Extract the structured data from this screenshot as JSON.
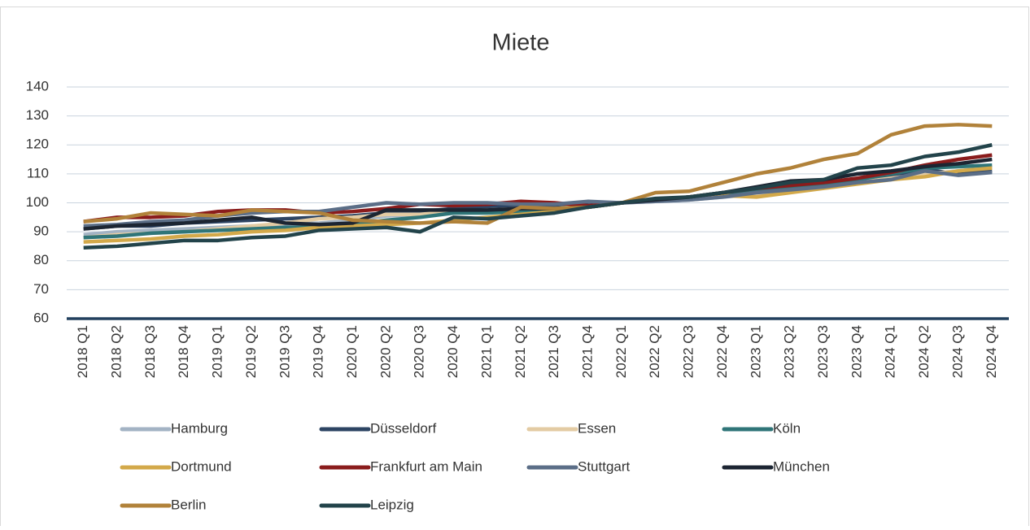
{
  "chart_data": {
    "type": "line",
    "title": "Miete",
    "categories": [
      "2018 Q1",
      "2018 Q2",
      "2018 Q3",
      "2018 Q4",
      "2019 Q1",
      "2019 Q2",
      "2019 Q3",
      "2019 Q4",
      "2020 Q1",
      "2020 Q2",
      "2020 Q3",
      "2020 Q4",
      "2021 Q1",
      "2021 Q2",
      "2021 Q3",
      "2021 Q4",
      "2022 Q1",
      "2022 Q2",
      "2022 Q3",
      "2022 Q4",
      "2023 Q1",
      "2023 Q2",
      "2023 Q3",
      "2023 Q4",
      "2024 Q1",
      "2024 Q2",
      "2024 Q3",
      "2024 Q4"
    ],
    "series": [
      {
        "name": "Hamburg",
        "color": "#a3b3c4",
        "values": [
          89,
          90,
          90.5,
          91,
          91.5,
          92,
          92.5,
          93,
          94,
          95.5,
          96,
          96.5,
          97,
          97.5,
          98,
          99,
          100,
          100.5,
          101,
          102,
          103,
          104,
          105.5,
          107,
          108.5,
          110,
          111,
          112
        ]
      },
      {
        "name": "Düsseldorf",
        "color": "#2d4463",
        "values": [
          91,
          92,
          92,
          93,
          93.5,
          94,
          94.5,
          95,
          95.5,
          96.5,
          97,
          98,
          98.5,
          99,
          99,
          99.5,
          100,
          101,
          102,
          103,
          104.5,
          105.5,
          106.5,
          108,
          109.5,
          111.5,
          110,
          111
        ]
      },
      {
        "name": "Essen",
        "color": "#e3cba3",
        "values": [
          88,
          89,
          89.5,
          90,
          91,
          92,
          93,
          94.5,
          95,
          96,
          96,
          97,
          97.5,
          98,
          98,
          99,
          100,
          101,
          101.5,
          102.5,
          103,
          104,
          105.5,
          107,
          108.5,
          110,
          111,
          112.5
        ]
      },
      {
        "name": "Köln",
        "color": "#2f7578",
        "values": [
          88,
          88.5,
          89.5,
          90,
          90.5,
          91,
          91.5,
          91.5,
          92.5,
          94,
          95,
          96.5,
          96.5,
          97,
          97.5,
          98.5,
          100,
          101,
          101.5,
          102.5,
          104,
          105,
          106.5,
          108,
          110,
          112,
          112.5,
          113
        ]
      },
      {
        "name": "Dortmund",
        "color": "#d3a94a",
        "values": [
          86.5,
          87,
          87.5,
          88.5,
          89,
          90,
          90.5,
          91.5,
          92,
          92.5,
          93,
          94,
          95,
          96,
          97,
          98.5,
          100,
          101,
          101.5,
          102.5,
          102,
          103.5,
          105,
          106.5,
          108,
          109,
          111,
          112
        ]
      },
      {
        "name": "Frankfurt am Main",
        "color": "#8a1c1c",
        "values": [
          93.5,
          95,
          95,
          95.5,
          97,
          97.5,
          97.5,
          96.5,
          97,
          98,
          99.5,
          99,
          99.5,
          100.5,
          100,
          99,
          100,
          101,
          102,
          103.5,
          105,
          106,
          107,
          108.5,
          110.5,
          113,
          115,
          116.5
        ]
      },
      {
        "name": "Stuttgart",
        "color": "#5b6e87",
        "values": [
          92,
          92.5,
          93.5,
          94,
          95.5,
          96.5,
          97,
          97,
          98.5,
          100,
          99.5,
          100,
          100,
          99.5,
          99.5,
          100.5,
          100,
          100.5,
          101,
          102,
          103.5,
          104.5,
          105.5,
          107,
          108,
          111,
          109.5,
          110.5
        ]
      },
      {
        "name": "München",
        "color": "#1c2532",
        "values": [
          91,
          92,
          92.5,
          93,
          94,
          95,
          93,
          92.5,
          93,
          97.5,
          97.5,
          97.5,
          97.5,
          98,
          98,
          98.5,
          100,
          101,
          102,
          103.5,
          105.5,
          107.5,
          108,
          110,
          111,
          112.5,
          113.5,
          115
        ]
      },
      {
        "name": "Berlin",
        "color": "#b1823a",
        "values": [
          93.5,
          94.5,
          96.5,
          96,
          95.5,
          97.5,
          97,
          96.5,
          94,
          93.5,
          93,
          93.5,
          93,
          98.5,
          98,
          98.5,
          100,
          103.5,
          104,
          107,
          110,
          112,
          115,
          117,
          123.5,
          126.5,
          127,
          126.5
        ]
      },
      {
        "name": "Leipzig",
        "color": "#22434a",
        "values": [
          84.5,
          85,
          86,
          87,
          87,
          88,
          88.5,
          90.5,
          91,
          91.5,
          90,
          95,
          94.5,
          95.5,
          96.5,
          98.5,
          100,
          101.5,
          102,
          103.5,
          105,
          107,
          108,
          112,
          113,
          116,
          117.5,
          120
        ]
      }
    ],
    "ylim": [
      60,
      140
    ],
    "yticks": [
      60,
      70,
      80,
      90,
      100,
      110,
      120,
      130,
      140
    ],
    "grid": true
  }
}
